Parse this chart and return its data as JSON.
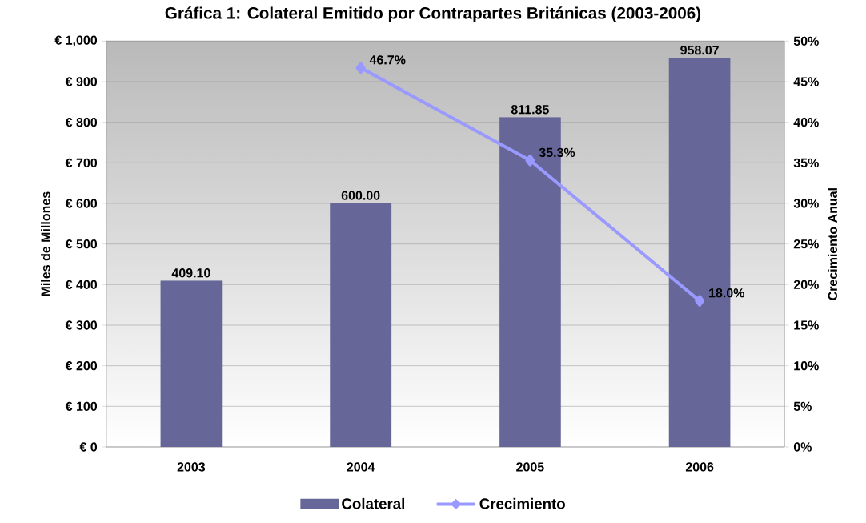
{
  "chart_data": {
    "type": "bar",
    "title": "Gráfica 1: Colateral Emitido por Contrapartes Británicas (2003-2006)",
    "categories": [
      "2003",
      "2004",
      "2005",
      "2006"
    ],
    "ylabel": "Miles de Millones",
    "y2label": "Crecimiento Anual",
    "ylim": [
      0,
      1000
    ],
    "yticks": [
      {
        "value": 0,
        "label": "€ 0"
      },
      {
        "value": 100,
        "label": "€ 100"
      },
      {
        "value": 200,
        "label": "€ 200"
      },
      {
        "value": 300,
        "label": "€ 300"
      },
      {
        "value": 400,
        "label": "€ 400"
      },
      {
        "value": 500,
        "label": "€ 500"
      },
      {
        "value": 600,
        "label": "€ 600"
      },
      {
        "value": 700,
        "label": "€ 700"
      },
      {
        "value": 800,
        "label": "€ 800"
      },
      {
        "value": 900,
        "label": "€ 900"
      },
      {
        "value": 1000,
        "label": "€ 1,000"
      }
    ],
    "y2lim": [
      0,
      50
    ],
    "y2ticks": [
      {
        "value": 0,
        "label": "0%"
      },
      {
        "value": 5,
        "label": "5%"
      },
      {
        "value": 10,
        "label": "10%"
      },
      {
        "value": 15,
        "label": "15%"
      },
      {
        "value": 20,
        "label": "20%"
      },
      {
        "value": 25,
        "label": "25%"
      },
      {
        "value": 30,
        "label": "30%"
      },
      {
        "value": 35,
        "label": "35%"
      },
      {
        "value": 40,
        "label": "40%"
      },
      {
        "value": 45,
        "label": "45%"
      },
      {
        "value": 50,
        "label": "50%"
      }
    ],
    "grid": "y",
    "legend": "bottom",
    "marker": "diamond",
    "series": [
      {
        "name": "Colateral",
        "color": "#666699",
        "values": [
          409.1,
          600.0,
          811.85,
          958.07
        ],
        "value_labels": [
          "409.10",
          "600.00",
          "811.85",
          "958.07"
        ]
      },
      {
        "name": "Crecimiento",
        "type": "line",
        "axis": "y2",
        "color": "#9999ff",
        "values": [
          null,
          46.7,
          35.3,
          18.0
        ],
        "value_labels": [
          null,
          "46.7%",
          "35.3%",
          "18.0%"
        ]
      }
    ]
  }
}
